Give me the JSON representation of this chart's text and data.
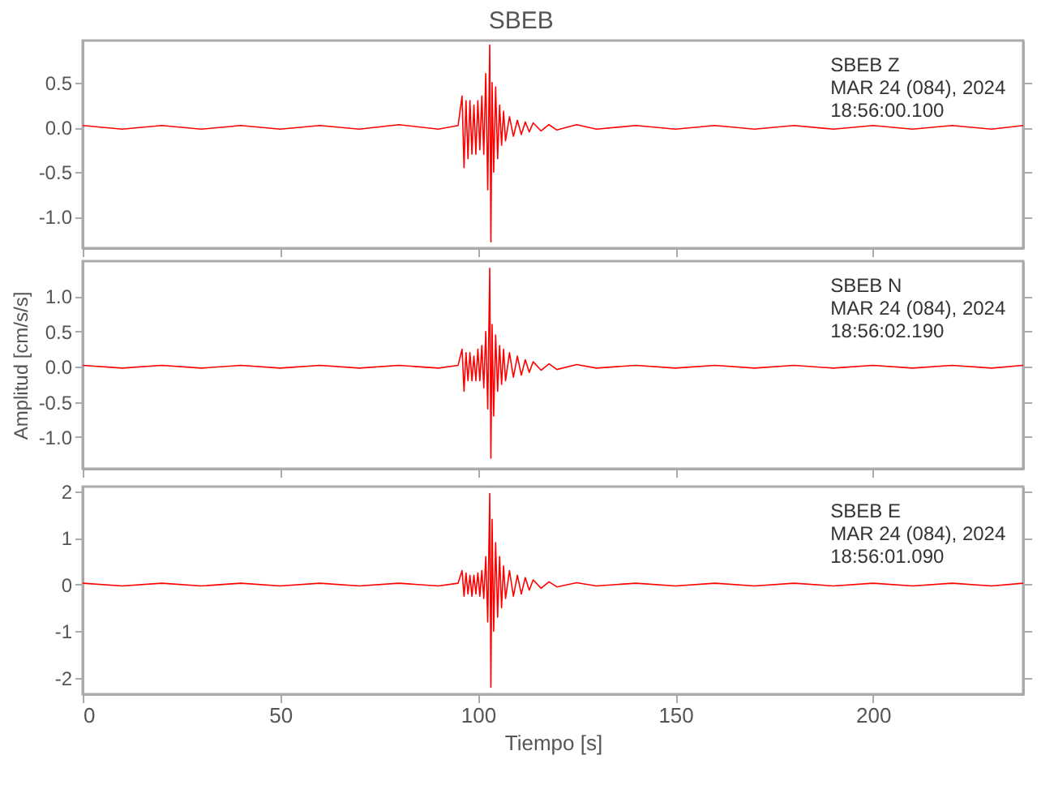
{
  "chart_data": [
    {
      "type": "line",
      "title": "SBEB",
      "annotations": [
        "SBEB   Z",
        "MAR 24 (084), 2024",
        "18:56:00.100"
      ],
      "xlim": [
        0,
        238
      ],
      "ylim": [
        -1.35,
        0.97
      ],
      "tick_labels": "y",
      "xticks": [
        0,
        50,
        100,
        150,
        200
      ],
      "yticks": [
        {
          "value": -1,
          "label": "-1.0"
        },
        -0.5,
        {
          "value": 0,
          "label": "0.0"
        },
        0.5
      ],
      "x": [
        0,
        10,
        20,
        30,
        40,
        50,
        60,
        70,
        80,
        90,
        95,
        96,
        96.5,
        97,
        97.5,
        98,
        98.5,
        99,
        99.5,
        100,
        100.5,
        101,
        101.5,
        102,
        102.5,
        103,
        103.3,
        103.6,
        104,
        104.5,
        105,
        105.5,
        106,
        106.5,
        107,
        108,
        109,
        110,
        111,
        112,
        113,
        114,
        116,
        118,
        120,
        125,
        130,
        140,
        150,
        160,
        170,
        180,
        190,
        200,
        210,
        220,
        230,
        238
      ],
      "series": [
        {
          "color": "#ff0000",
          "values": [
            0.02,
            -0.02,
            0.02,
            -0.02,
            0.02,
            -0.02,
            0.02,
            -0.02,
            0.03,
            -0.02,
            0.02,
            0.35,
            -0.45,
            0.3,
            -0.35,
            0.3,
            -0.3,
            0.25,
            -0.3,
            0.3,
            -0.25,
            0.35,
            -0.3,
            0.6,
            -0.7,
            0.92,
            -1.28,
            0.5,
            -0.5,
            0.45,
            -0.35,
            0.25,
            -0.2,
            0.18,
            -0.15,
            0.12,
            -0.1,
            0.08,
            -0.08,
            0.06,
            -0.05,
            0.05,
            -0.04,
            0.03,
            -0.03,
            0.03,
            -0.02,
            0.02,
            -0.02,
            0.02,
            -0.02,
            0.02,
            -0.02,
            0.02,
            -0.02,
            0.02,
            -0.02,
            0.02
          ]
        }
      ]
    },
    {
      "type": "line",
      "ylabel": "Amplitud [cm/s/s]",
      "annotations": [
        "SBEB   N",
        "MAR 24 (084), 2024",
        "18:56:02.190"
      ],
      "xlim": [
        0,
        238
      ],
      "ylim": [
        -1.45,
        1.5
      ],
      "tick_labels": "y",
      "xticks": [
        0,
        50,
        100,
        150,
        200
      ],
      "yticks": [
        {
          "value": -1,
          "label": "-1.0"
        },
        -0.5,
        {
          "value": 0,
          "label": "0.0"
        },
        0.5,
        {
          "value": 1,
          "label": "1.0"
        }
      ],
      "x": [
        0,
        10,
        20,
        30,
        40,
        50,
        60,
        70,
        80,
        90,
        95,
        96,
        96.5,
        97,
        97.5,
        98,
        98.5,
        99,
        99.5,
        100,
        100.5,
        101,
        101.5,
        102,
        102.5,
        103,
        103.3,
        103.6,
        104,
        104.5,
        105,
        105.5,
        106,
        106.5,
        107,
        108,
        109,
        110,
        111,
        112,
        113,
        114,
        116,
        118,
        120,
        125,
        130,
        140,
        150,
        160,
        170,
        180,
        190,
        200,
        210,
        220,
        230,
        238
      ],
      "series": [
        {
          "color": "#ff0000",
          "values": [
            0.02,
            -0.02,
            0.02,
            -0.02,
            0.02,
            -0.02,
            0.02,
            -0.02,
            0.02,
            -0.02,
            0.02,
            0.25,
            -0.35,
            0.2,
            -0.2,
            0.2,
            -0.2,
            0.15,
            -0.2,
            0.25,
            -0.2,
            0.3,
            -0.3,
            0.5,
            -0.6,
            1.4,
            -1.3,
            0.6,
            -0.7,
            0.45,
            -0.35,
            0.3,
            -0.25,
            0.25,
            -0.2,
            0.2,
            -0.15,
            0.15,
            -0.12,
            0.1,
            -0.08,
            0.07,
            -0.05,
            0.04,
            -0.04,
            0.03,
            -0.02,
            0.02,
            -0.02,
            0.02,
            -0.02,
            0.02,
            -0.02,
            0.02,
            -0.02,
            0.02,
            -0.02,
            0.02
          ]
        }
      ]
    },
    {
      "type": "line",
      "xlabel": "Tiempo [s]",
      "annotations": [
        "SBEB   E",
        "MAR 24 (084), 2024",
        "18:56:01.090"
      ],
      "xlim": [
        0,
        238
      ],
      "ylim": [
        -2.35,
        2.1
      ],
      "xticks": [
        0,
        50,
        100,
        150,
        200
      ],
      "yticks": [
        -2,
        -1,
        0,
        1,
        2
      ],
      "x": [
        0,
        10,
        20,
        30,
        40,
        50,
        60,
        70,
        80,
        90,
        95,
        96,
        96.5,
        97,
        97.5,
        98,
        98.5,
        99,
        99.5,
        100,
        100.5,
        101,
        101.5,
        102,
        102.5,
        103,
        103.3,
        103.6,
        104,
        104.5,
        105,
        105.5,
        106,
        106.5,
        107,
        108,
        109,
        110,
        111,
        112,
        113,
        114,
        116,
        118,
        120,
        125,
        130,
        140,
        150,
        160,
        170,
        180,
        190,
        200,
        210,
        220,
        230,
        238
      ],
      "series": [
        {
          "color": "#ff0000",
          "values": [
            0.03,
            -0.03,
            0.03,
            -0.03,
            0.03,
            -0.03,
            0.03,
            -0.03,
            0.03,
            -0.03,
            0.03,
            0.3,
            -0.25,
            0.25,
            -0.2,
            0.2,
            -0.25,
            0.2,
            -0.2,
            0.25,
            -0.25,
            0.3,
            -0.3,
            0.6,
            -0.8,
            1.95,
            -2.2,
            1.4,
            -1.0,
            0.9,
            -0.7,
            0.6,
            -0.5,
            0.4,
            -0.3,
            0.3,
            -0.25,
            0.2,
            -0.2,
            0.15,
            -0.12,
            0.1,
            -0.08,
            0.06,
            -0.05,
            0.04,
            -0.03,
            0.03,
            -0.03,
            0.03,
            -0.03,
            0.03,
            -0.03,
            0.03,
            -0.03,
            0.03,
            -0.03,
            0.03
          ]
        }
      ]
    }
  ]
}
